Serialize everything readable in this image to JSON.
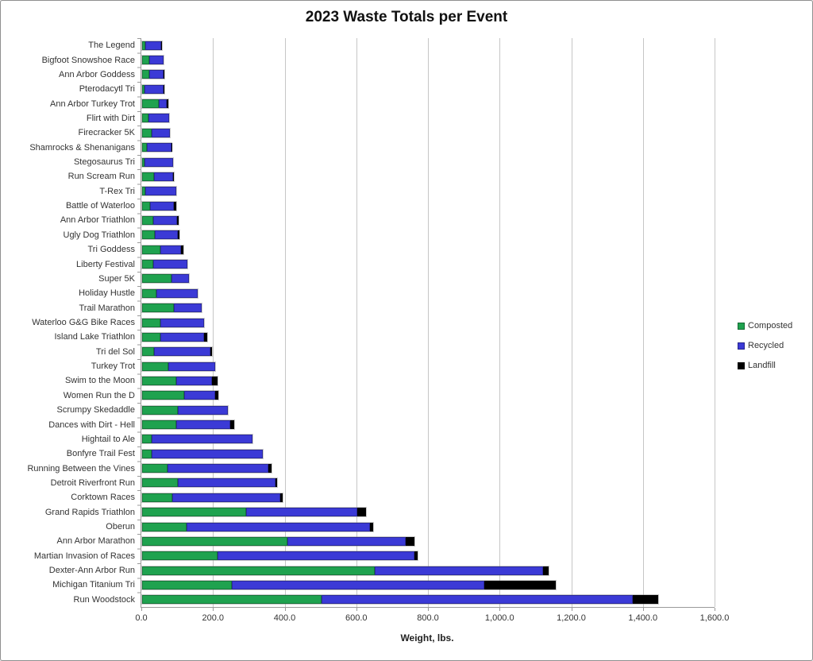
{
  "title": "2023 Waste Totals per Event",
  "xlabel": "Weight, lbs.",
  "legend": {
    "items": [
      {
        "label": "Composted",
        "color": "#1FA24F"
      },
      {
        "label": "Recycled",
        "color": "#3B3AD6"
      },
      {
        "label": "Landfill",
        "color": "#000000"
      }
    ]
  },
  "chart_data": {
    "type": "bar",
    "orientation": "horizontal",
    "stacked": true,
    "title": "2023 Waste Totals per Event",
    "xlabel": "Weight, lbs.",
    "xlim": [
      0,
      1600
    ],
    "x_ticks": [
      "0.0",
      "200.0",
      "400.0",
      "600.0",
      "800.0",
      "1,000.0",
      "1,200.0",
      "1,400.0",
      "1,600.0"
    ],
    "x_tick_values": [
      0,
      200,
      400,
      600,
      800,
      1000,
      1200,
      1400,
      1600
    ],
    "grid": true,
    "legend_position": "right",
    "categories": [
      "The Legend",
      "Bigfoot Snowshoe Race",
      "Ann Arbor Goddess",
      "Pterodacytl Tri",
      "Ann Arbor Turkey Trot",
      "Flirt with Dirt",
      "Firecracker 5K",
      "Shamrocks & Shenanigans",
      "Stegosaurus Tri",
      "Run Scream Run",
      "T-Rex Tri",
      "Battle of Waterloo",
      "Ann Arbor Triathlon",
      "Ugly Dog Triathlon",
      "Tri Goddess",
      "Liberty Festival",
      "Super 5K",
      "Holiday Hustle",
      "Trail Marathon",
      "Waterloo G&G Bike Races",
      "Island Lake Triathlon",
      "Tri del Sol",
      "Turkey Trot",
      "Swim to the Moon",
      "Women Run the D",
      "Scrumpy Skedaddle",
      "Dances with Dirt - Hell",
      "Hightail to Ale",
      "Bonfyre Trail Fest",
      "Running Between the Vines",
      "Detroit Riverfront Run",
      "Corktown Races",
      "Grand Rapids Triathlon",
      "Oberun",
      "Ann Arbor Marathon",
      "Martian Invasion of Races",
      "Dexter-Ann Arbor Run",
      "Michigan Titanium Tri",
      "Run Woodstock"
    ],
    "series": [
      {
        "name": "Composted",
        "color": "#1FA24F",
        "values": [
          9,
          20,
          20,
          7,
          46,
          18,
          26,
          13,
          7,
          33,
          9,
          22,
          31,
          36,
          50,
          30,
          83,
          40,
          89,
          52,
          50,
          33,
          74,
          96,
          118,
          100,
          96,
          27,
          27,
          72,
          100,
          85,
          290,
          125,
          405,
          210,
          650,
          250,
          500
        ]
      },
      {
        "name": "Recycled",
        "color": "#3B3AD6",
        "values": [
          45,
          39,
          39,
          52,
          23,
          58,
          52,
          68,
          79,
          54,
          86,
          67,
          67,
          63,
          59,
          97,
          47,
          116,
          77,
          121,
          122,
          157,
          130,
          98,
          87,
          140,
          150,
          280,
          310,
          281,
          272,
          300,
          310,
          512,
          330,
          550,
          470,
          705,
          870
        ]
      },
      {
        "name": "Landfill",
        "color": "#000000",
        "values": [
          2,
          0,
          2,
          2,
          4,
          0,
          0,
          1,
          0,
          2,
          0,
          7,
          4,
          6,
          7,
          0,
          0,
          0,
          0,
          0,
          9,
          4,
          0,
          16,
          8,
          0,
          10,
          0,
          0,
          8,
          4,
          8,
          25,
          8,
          25,
          10,
          15,
          200,
          70
        ]
      }
    ]
  }
}
